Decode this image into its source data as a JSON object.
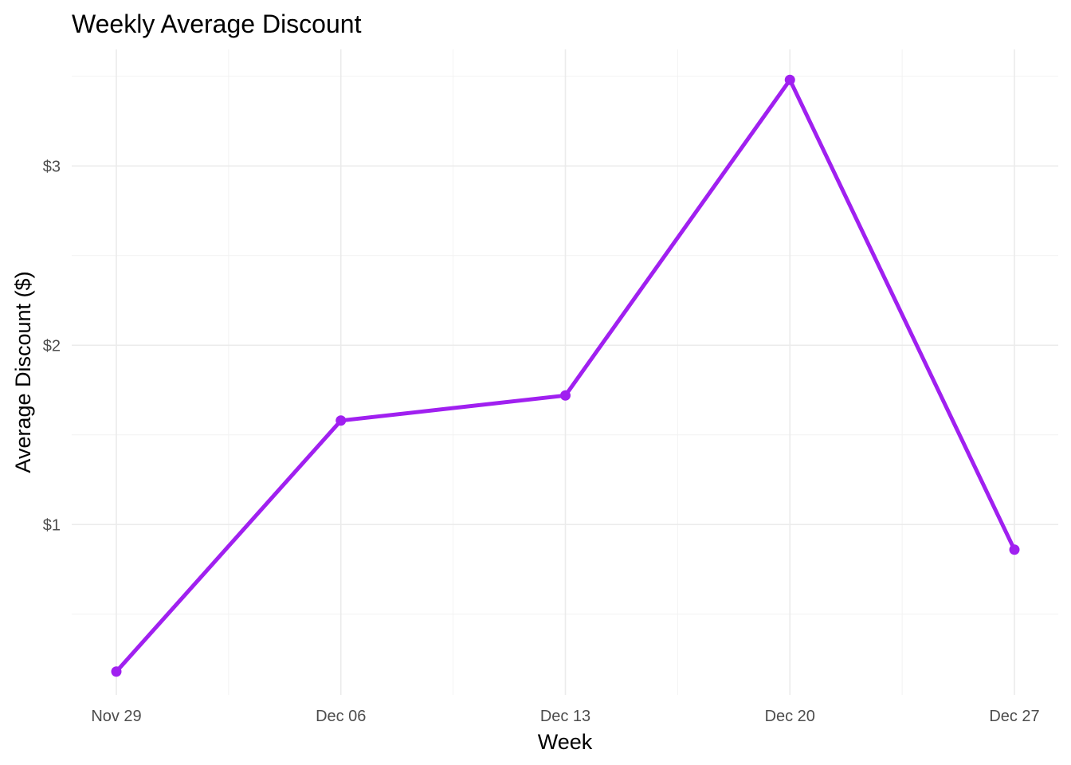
{
  "chart_data": {
    "type": "line",
    "title": "Weekly Average Discount",
    "xlabel": "Week",
    "ylabel": "Average Discount ($)",
    "x": [
      "Nov 29",
      "Dec 06",
      "Dec 13",
      "Dec 20",
      "Dec 27"
    ],
    "y_ticks": [
      {
        "value": 1,
        "label": "$1"
      },
      {
        "value": 2,
        "label": "$2"
      },
      {
        "value": 3,
        "label": "$3"
      }
    ],
    "ylim": [
      0.05,
      3.65
    ],
    "grid": true,
    "legend": "none",
    "series": [
      {
        "color": "#a020f0",
        "values": [
          0.18,
          1.58,
          1.72,
          3.48,
          0.86
        ]
      }
    ]
  }
}
